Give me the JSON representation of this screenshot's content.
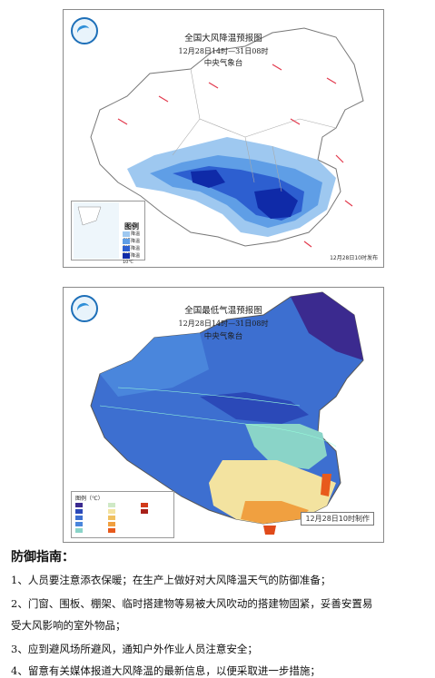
{
  "map1": {
    "title": "全国大风降温预报图",
    "period": "12月28日14时—31日08时",
    "issuer": "中央气象台",
    "legend_title": "图例",
    "legend_items": [
      {
        "label": "降温4℃",
        "color": "#9ec8f0"
      },
      {
        "label": "降温6℃",
        "color": "#5f9ee6"
      },
      {
        "label": "降温8℃",
        "color": "#2d5fd0"
      },
      {
        "label": "降温10℃",
        "color": "#0f2aa8"
      }
    ],
    "stamp": "12月28日10时发布"
  },
  "map2": {
    "title": "全国最低气温预报图",
    "period": "12月28日14时—31日08时",
    "issuer": "中央气象台",
    "legend_title": "图例（℃）",
    "stamp": "12月28日10时制作"
  },
  "guide": {
    "title": "防御指南：",
    "items": [
      "1、人员要注意添衣保暖；在生产上做好对大风降温天气的防御准备；",
      "2、门窗、围板、棚架、临时搭建物等易被大风吹动的搭建物固紧，妥善安置易",
      "受大风影响的室外物品；",
      "3、应到避风场所避风，通知户外作业人员注意安全；",
      "4、留意有关媒体报道大风降温的最新信息，以便采取进一步措施；"
    ]
  }
}
